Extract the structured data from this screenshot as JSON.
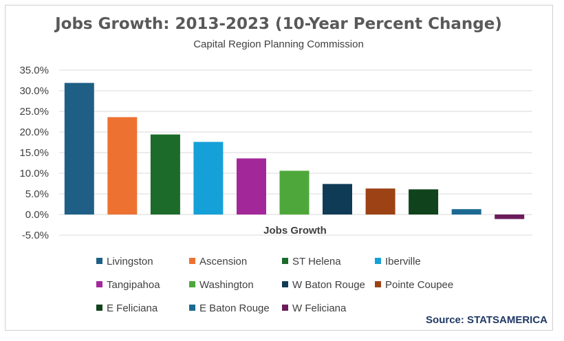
{
  "chart_data": {
    "type": "bar",
    "title": "Jobs Growth: 2013-2023 (10-Year Percent Change)",
    "subtitle": "Capital Region Planning Commission",
    "xlabel": "Jobs Growth",
    "ylim": [
      -5,
      35
    ],
    "yticks": [
      "35.0%",
      "30.0%",
      "25.0%",
      "20.0%",
      "15.0%",
      "10.0%",
      "5.0%",
      "0.0%",
      "-5.0%"
    ],
    "grid": true,
    "legend_position": "bottom",
    "series": [
      {
        "name": "Livingston",
        "value": 31.9,
        "color": "#1f5f86"
      },
      {
        "name": "Ascension",
        "value": 23.6,
        "color": "#ed7232"
      },
      {
        "name": "ST Helena",
        "value": 19.4,
        "color": "#1c6b2a"
      },
      {
        "name": "Iberville",
        "value": 17.6,
        "color": "#16a0d8"
      },
      {
        "name": "Tangipahoa",
        "value": 13.6,
        "color": "#a2289a"
      },
      {
        "name": "Washington",
        "value": 10.6,
        "color": "#4ea73a"
      },
      {
        "name": "W Baton Rouge",
        "value": 7.4,
        "color": "#0f3b57"
      },
      {
        "name": "Pointe Coupee",
        "value": 6.3,
        "color": "#9c4215"
      },
      {
        "name": "E Feliciana",
        "value": 6.1,
        "color": "#10431c"
      },
      {
        "name": "E Baton Rouge",
        "value": 1.3,
        "color": "#1c6a92"
      },
      {
        "name": "W Feliciana",
        "value": -1.1,
        "color": "#6b1b5c"
      }
    ]
  },
  "source": "Source: STATSAMERICA"
}
